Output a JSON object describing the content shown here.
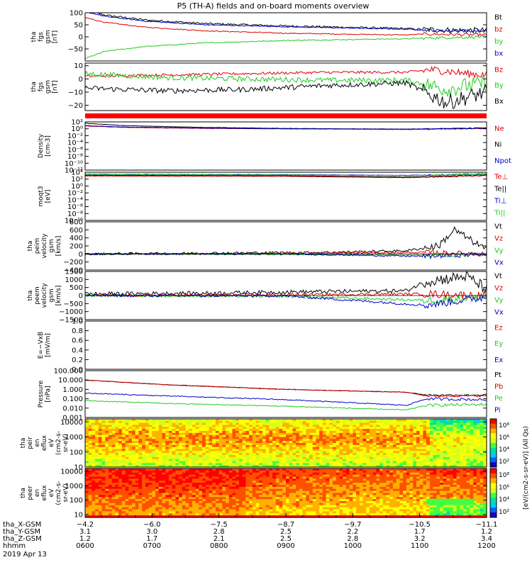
{
  "title": "P5 (TH-A) fields and on-board moments overview",
  "colors": {
    "black": "#000000",
    "red": "#dd0000",
    "blue": "#0000cc",
    "green": "#22cc22"
  },
  "chart_data": [
    {
      "type": "line",
      "ylabel": [
        "tha",
        "fgs",
        "gsm",
        "[nT]"
      ],
      "ylim": [
        -100,
        100
      ],
      "yticks": [
        "100",
        "50",
        "0",
        "−50"
      ],
      "yticks_values": [
        100,
        50,
        0,
        -50
      ],
      "series": [
        {
          "name": "Bt",
          "color": "black",
          "x": [
            0,
            0.05,
            0.15,
            0.3,
            0.5,
            0.7,
            0.8,
            0.85,
            0.9,
            1
          ],
          "y": [
            110,
            90,
            70,
            55,
            45,
            38,
            34,
            30,
            28,
            27
          ],
          "noise": 4
        },
        {
          "name": "bz",
          "color": "red",
          "x": [
            0,
            0.05,
            0.15,
            0.3,
            0.5,
            0.7,
            0.8,
            0.85,
            0.9,
            1
          ],
          "y": [
            80,
            60,
            40,
            25,
            15,
            10,
            8,
            12,
            10,
            8
          ],
          "noise": 2
        },
        {
          "name": "by",
          "color": "green",
          "x": [
            0,
            0.05,
            0.15,
            0.3,
            0.5,
            0.7,
            0.8,
            0.85,
            0.9,
            1
          ],
          "y": [
            -90,
            -60,
            -40,
            -25,
            -15,
            -10,
            -8,
            -5,
            -3,
            0
          ],
          "noise": 2
        },
        {
          "name": "bx",
          "color": "blue",
          "x": [
            0,
            0.05,
            0.15,
            0.3,
            0.5,
            0.7,
            0.8,
            0.85,
            0.9,
            1
          ],
          "y": [
            105,
            85,
            65,
            50,
            42,
            35,
            32,
            28,
            25,
            24
          ],
          "noise": 2
        }
      ]
    },
    {
      "type": "line",
      "ylabel": [
        "tha",
        "fgs",
        "gsm",
        "[nT]"
      ],
      "ylim": [
        -24,
        12
      ],
      "yticks": [
        "10",
        "0",
        "−10",
        "−20"
      ],
      "yticks_values": [
        10,
        0,
        -10,
        -20
      ],
      "series": [
        {
          "name": "Bz",
          "color": "red",
          "x": [
            0,
            0.2,
            0.4,
            0.6,
            0.8,
            0.86,
            0.9,
            0.95,
            1
          ],
          "y": [
            2,
            3,
            4,
            5,
            5,
            7,
            6,
            4,
            3
          ],
          "noise": 1
        },
        {
          "name": "By",
          "color": "green",
          "x": [
            0,
            0.2,
            0.4,
            0.6,
            0.8,
            0.86,
            0.9,
            0.95,
            1
          ],
          "y": [
            4,
            1,
            0,
            -1,
            -1,
            -5,
            -8,
            -5,
            -3
          ],
          "noise": 2
        },
        {
          "name": "Bx",
          "color": "black",
          "x": [
            0,
            0.2,
            0.4,
            0.6,
            0.8,
            0.86,
            0.9,
            0.95,
            1
          ],
          "y": [
            -7,
            -9,
            -8,
            -5,
            -3,
            -12,
            -18,
            -14,
            -10
          ],
          "noise": 2
        }
      ]
    },
    {
      "type": "line",
      "ylabel": [
        "Density",
        "[cm-3]"
      ],
      "ylim": [
        -12,
        2
      ],
      "log": true,
      "yticks": [
        "10²",
        "10⁰",
        "10⁻²",
        "10⁻⁴",
        "10⁻⁶",
        "10⁻⁸",
        "10⁻¹⁰",
        "10⁻¹²"
      ],
      "yticks_values": [
        2,
        0,
        -2,
        -4,
        -6,
        -8,
        -10,
        -12
      ],
      "series": [
        {
          "name": "Ne",
          "color": "red",
          "x": [
            0,
            0.1,
            0.3,
            0.5,
            0.8,
            1
          ],
          "y": [
            0.8,
            0.4,
            0.1,
            0.0,
            -0.2,
            0.1
          ],
          "noise": 0.05
        },
        {
          "name": "Ni",
          "color": "black",
          "x": [
            0,
            0.1,
            0.3,
            0.5,
            0.8,
            1
          ],
          "y": [
            1.6,
            0.9,
            0.4,
            0.1,
            -0.1,
            0.2
          ],
          "noise": 0.05
        },
        {
          "name": "Npot",
          "color": "blue",
          "x": [
            0,
            0.1,
            0.3,
            0.5,
            0.8,
            1
          ],
          "y": [
            0.9,
            0.5,
            0.2,
            0.0,
            -0.1,
            0.2
          ],
          "noise": 0.05
        }
      ]
    },
    {
      "type": "line",
      "ylabel": [
        "moqt3",
        "[eV]"
      ],
      "ylim": [
        -10,
        4
      ],
      "log": true,
      "yticks": [
        "10⁴",
        "10²",
        "10⁰",
        "10⁻²",
        "10⁻⁴",
        "10⁻⁶",
        "10⁻⁸",
        "10⁻¹⁰"
      ],
      "yticks_values": [
        4,
        2,
        0,
        -2,
        -4,
        -6,
        -8,
        -10
      ],
      "series": [
        {
          "name": "Te⊥",
          "color": "red",
          "x": [
            0,
            0.5,
            0.8,
            1
          ],
          "y": [
            2.9,
            2.8,
            2.4,
            3.0
          ],
          "noise": 0.05
        },
        {
          "name": "Te||",
          "color": "black",
          "x": [
            0,
            0.5,
            0.8,
            1
          ],
          "y": [
            3.1,
            3.0,
            2.6,
            3.2
          ],
          "noise": 0.05
        },
        {
          "name": "Ti⊥",
          "color": "blue",
          "x": [
            0,
            0.5,
            0.8,
            1
          ],
          "y": [
            3.4,
            3.3,
            3.1,
            3.5
          ],
          "noise": 0.05
        },
        {
          "name": "Ti||",
          "color": "green",
          "x": [
            0,
            0.5,
            0.8,
            1
          ],
          "y": [
            3.3,
            3.2,
            3.0,
            3.4
          ],
          "noise": 0.05
        }
      ]
    },
    {
      "type": "line",
      "ylabel": [
        "tha",
        "peim",
        "velocity",
        "gsm",
        "[km/s]"
      ],
      "ylim": [
        -400,
        800
      ],
      "yticks": [
        "800",
        "600",
        "400",
        "200",
        "0",
        "−200",
        "−400"
      ],
      "yticks_values": [
        800,
        600,
        400,
        200,
        0,
        -200,
        -400
      ],
      "series": [
        {
          "name": "Vt",
          "color": "black",
          "x": [
            0,
            0.3,
            0.6,
            0.8,
            0.88,
            0.92,
            1
          ],
          "y": [
            0,
            20,
            40,
            80,
            200,
            600,
            100
          ],
          "noise": 30
        },
        {
          "name": "Vz",
          "color": "red",
          "x": [
            0,
            0.5,
            0.85,
            1
          ],
          "y": [
            0,
            10,
            40,
            0
          ],
          "noise": 20
        },
        {
          "name": "Vy",
          "color": "green",
          "x": [
            0,
            0.5,
            0.85,
            1
          ],
          "y": [
            0,
            -10,
            -40,
            0
          ],
          "noise": 20
        },
        {
          "name": "Vx",
          "color": "blue",
          "x": [
            0,
            0.5,
            0.85,
            1
          ],
          "y": [
            0,
            0,
            -60,
            0
          ],
          "noise": 20
        }
      ]
    },
    {
      "type": "line",
      "ylabel": [
        "tha",
        "peem",
        "velocity",
        "gsm",
        "[km/s]"
      ],
      "ylim": [
        -1500,
        1500
      ],
      "yticks": [
        "1500",
        "1000",
        "500",
        "0",
        "−500",
        "−1000",
        "−1500"
      ],
      "yticks_values": [
        1500,
        1000,
        500,
        0,
        -500,
        -1000,
        -1500
      ],
      "series": [
        {
          "name": "Vt",
          "color": "black",
          "x": [
            0,
            0.3,
            0.6,
            0.8,
            0.85,
            0.95,
            1
          ],
          "y": [
            100,
            150,
            250,
            300,
            900,
            1200,
            400
          ],
          "noise": 120
        },
        {
          "name": "Vz",
          "color": "red",
          "x": [
            0,
            0.5,
            0.85,
            1
          ],
          "y": [
            0,
            50,
            100,
            0
          ],
          "noise": 80
        },
        {
          "name": "Vy",
          "color": "green",
          "x": [
            0,
            0.5,
            0.85,
            1
          ],
          "y": [
            0,
            -50,
            -300,
            -100
          ],
          "noise": 80
        },
        {
          "name": "Vx",
          "color": "blue",
          "x": [
            0,
            0.5,
            0.85,
            1
          ],
          "y": [
            0,
            -20,
            -600,
            -100
          ],
          "noise": 80
        }
      ]
    },
    {
      "type": "line",
      "ylabel": [
        "E=−VxB",
        "[mV/m]"
      ],
      "ylim": [
        0,
        1
      ],
      "yticks": [
        "1.0",
        "0.8",
        "0.6",
        "0.4",
        "0.2",
        "0.0"
      ],
      "yticks_values": [
        1.0,
        0.8,
        0.6,
        0.4,
        0.2,
        0.0
      ],
      "series": [
        {
          "name": "Ez",
          "color": "red",
          "x": [],
          "y": [],
          "noise": 0
        },
        {
          "name": "Ey",
          "color": "green",
          "x": [],
          "y": [],
          "noise": 0
        },
        {
          "name": "Ex",
          "color": "blue",
          "x": [],
          "y": [],
          "noise": 0
        }
      ]
    },
    {
      "type": "line",
      "ylabel": [
        "Pressure",
        "[nPa]"
      ],
      "ylim": [
        -3,
        2
      ],
      "log": true,
      "yticks": [
        "100.000",
        "10.000",
        "1.000",
        "0.100",
        "0.010",
        "0.001"
      ],
      "yticks_values": [
        2,
        1,
        0,
        -1,
        -2,
        -3
      ],
      "series": [
        {
          "name": "Pt",
          "color": "black",
          "x": [
            0,
            0.2,
            0.5,
            0.8,
            0.85,
            1
          ],
          "y": [
            1.0,
            0.5,
            0.0,
            -0.3,
            -0.6,
            -0.6
          ],
          "noise": 0.03
        },
        {
          "name": "Pb",
          "color": "red",
          "x": [
            0,
            0.2,
            0.5,
            0.8,
            0.85,
            1
          ],
          "y": [
            1.0,
            0.5,
            0.0,
            -0.3,
            -0.7,
            -0.7
          ],
          "noise": 0.03
        },
        {
          "name": "Pe",
          "color": "green",
          "x": [
            0,
            0.2,
            0.5,
            0.8,
            0.85,
            1
          ],
          "y": [
            -1.2,
            -1.5,
            -1.8,
            -2.2,
            -1.7,
            -1.6
          ],
          "noise": 0.05
        },
        {
          "name": "Pi",
          "color": "blue",
          "x": [
            0,
            0.2,
            0.5,
            0.8,
            0.85,
            1
          ],
          "y": [
            -0.4,
            -0.7,
            -1.1,
            -1.7,
            -1.0,
            -1.1
          ],
          "noise": 0.05
        }
      ]
    },
    {
      "type": "heatmap",
      "ylabel": [
        "tha",
        "peir",
        "en",
        "eflux",
        "eV",
        "(cm2-s-",
        "sr-eV)"
      ],
      "ylim": [
        1,
        4.2
      ],
      "log": true,
      "yticks": [
        "10000",
        "1000",
        "100",
        "10"
      ],
      "yticks_values": [
        4,
        3,
        2,
        1
      ]
    },
    {
      "type": "heatmap",
      "ylabel": [
        "tha",
        "peer",
        "en",
        "eflux",
        "eV",
        "(cm2-s-",
        "sr-eV)"
      ],
      "ylim": [
        0.8,
        4.2
      ],
      "log": true,
      "yticks": [
        "10000",
        "1000",
        "100",
        "10"
      ],
      "yticks_values": [
        4,
        3,
        2,
        1
      ]
    }
  ],
  "colorbar": {
    "label": "[eV/(cm2-s-sr-eV)] (All Qs)",
    "ticks_upper": [
      "10⁸",
      "10⁶",
      "10⁴",
      "10²"
    ],
    "ticks_lower": [
      "10⁸",
      "10⁶",
      "10⁴",
      "10²"
    ]
  },
  "xaxis": {
    "rows": [
      {
        "label": "tha_X-GSM",
        "values": [
          "−4.2",
          "−6.0",
          "−7.5",
          "−8.7",
          "−9.7",
          "−10.5",
          "−11.1"
        ]
      },
      {
        "label": "tha_Y-GSM",
        "values": [
          "3.1",
          "3.0",
          "2.8",
          "2.5",
          "2.2",
          "1.7",
          "1.2"
        ]
      },
      {
        "label": "tha_Z-GSM",
        "values": [
          "1.2",
          "1.7",
          "2.1",
          "2.5",
          "2.8",
          "3.2",
          "3.4"
        ]
      },
      {
        "label": "hhmm",
        "values": [
          "0600",
          "0700",
          "0800",
          "0900",
          "1000",
          "1100",
          "1200"
        ]
      }
    ],
    "date": "2019 Apr 13"
  }
}
